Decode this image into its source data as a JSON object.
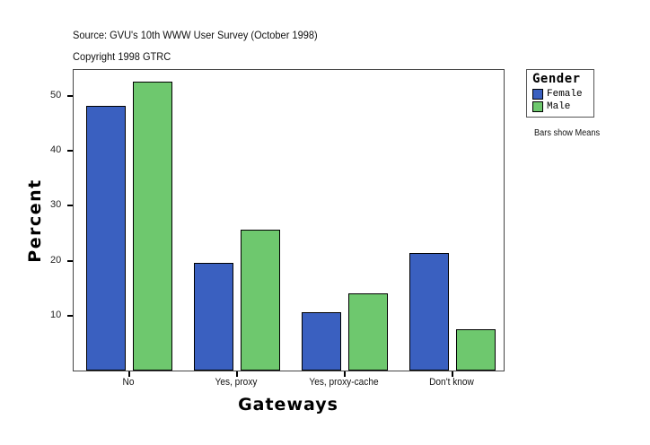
{
  "header": {
    "source": "Source: GVU's 10th WWW User Survey (October 1998)",
    "copyright": "Copyright 1998 GTRC"
  },
  "legend": {
    "title": "Gender",
    "items": [
      {
        "label": "Female",
        "color": "#3a60c0"
      },
      {
        "label": "Male",
        "color": "#6ec86e"
      }
    ],
    "note": "Bars show Means"
  },
  "axes": {
    "ylabel": "Percent",
    "xlabel": "Gateways",
    "yticks": [
      "10",
      "20",
      "30",
      "40",
      "50"
    ]
  },
  "chart_data": {
    "type": "bar",
    "title": "Source: GVU's 10th WWW User Survey (October 1998)",
    "subtitle": "Copyright 1998 GTRC",
    "xlabel": "Gateways",
    "ylabel": "Percent",
    "categories": [
      "No",
      "Yes, proxy",
      "Yes, proxy-cache",
      "Don't know"
    ],
    "series": [
      {
        "name": "Female",
        "color": "#3a60c0",
        "values": [
          48.2,
          19.6,
          10.6,
          21.4
        ]
      },
      {
        "name": "Male",
        "color": "#6ec86e",
        "values": [
          52.6,
          25.7,
          14.1,
          7.5
        ]
      }
    ],
    "ylim": [
      0,
      54.7
    ],
    "yticks": [
      10,
      20,
      30,
      40,
      50
    ],
    "grid": false,
    "legend": {
      "title": "Gender",
      "position": "right-top"
    },
    "annotations": [
      "Bars show Means"
    ]
  }
}
